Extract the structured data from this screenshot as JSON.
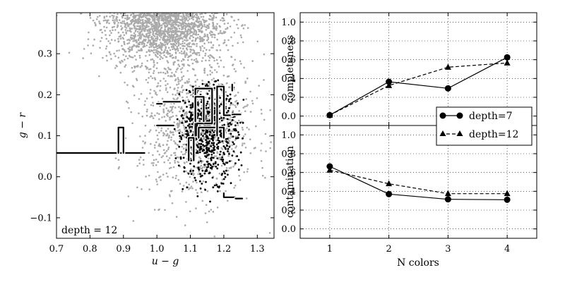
{
  "chart_data": [
    {
      "type": "scatter",
      "xlabel": "u − g",
      "ylabel": "g − r",
      "xlim": [
        0.7,
        1.35
      ],
      "ylim": [
        -0.15,
        0.4
      ],
      "xticks": [
        "0.7",
        "0.8",
        "0.9",
        "1.0",
        "1.1",
        "1.2",
        "1.3"
      ],
      "yticks": [
        "−0.1",
        "0.0",
        "0.1",
        "0.2",
        "0.3"
      ],
      "annotation": "depth = 12",
      "background_points": {
        "color": "#aaaaaa",
        "description_center": [
          1.02,
          0.38
        ]
      },
      "highlight_points": {
        "color": "#000000",
        "center": [
          1.15,
          0.11
        ]
      },
      "decision_boundary": {
        "color": "#000000",
        "segments": [
          {
            "x": [
              0.7,
              0.963
            ],
            "y": [
              0.058,
              0.058
            ]
          },
          {
            "x": [
              0.885,
              0.885,
              0.9,
              0.9
            ],
            "y": [
              0.058,
              0.12,
              0.12,
              0.058
            ]
          },
          {
            "x": [
              1.0,
              1.05
            ],
            "y": [
              0.125,
              0.125
            ]
          },
          {
            "x": [
              1.0,
              1.015
            ],
            "y": [
              0.178,
              0.178
            ]
          },
          {
            "x": [
              1.02,
              1.07
            ],
            "y": [
              0.183,
              0.183
            ]
          },
          {
            "x": [
              1.115,
              1.115,
              1.165,
              1.165,
              1.12,
              1.12
            ],
            "y": [
              0.1,
              0.215,
              0.215,
              0.13,
              0.13,
              0.1
            ]
          },
          {
            "x": [
              1.115,
              1.115,
              1.14,
              1.14
            ],
            "y": [
              0.135,
              0.195,
              0.195,
              0.135
            ]
          },
          {
            "x": [
              1.095,
              1.095,
              1.11,
              1.11
            ],
            "y": [
              0.04,
              0.095,
              0.095,
              0.04
            ]
          },
          {
            "x": [
              1.125,
              1.125,
              1.2,
              1.2
            ],
            "y": [
              0.095,
              0.12,
              0.12,
              0.095
            ]
          },
          {
            "x": [
              1.18,
              1.18,
              1.2,
              1.2,
              1.225
            ],
            "y": [
              0.1,
              0.22,
              0.22,
              0.15,
              0.15
            ]
          },
          {
            "x": [
              1.225,
              1.25
            ],
            "y": [
              0.152,
              0.152
            ]
          },
          {
            "x": [
              1.225,
              1.225
            ],
            "y": [
              0.225,
              0.21
            ]
          },
          {
            "x": [
              1.2,
              1.2,
              1.235
            ],
            "y": [
              -0.04,
              -0.05,
              -0.05
            ]
          },
          {
            "x": [
              1.235,
              1.255
            ],
            "y": [
              -0.053,
              -0.053
            ]
          }
        ]
      }
    },
    {
      "type": "line",
      "ylabel": "completeness",
      "x": [
        1,
        2,
        3,
        4
      ],
      "xlim": [
        0.5,
        4.5
      ],
      "ylim": [
        -0.1,
        1.1
      ],
      "yticks": [
        "0.0",
        "0.2",
        "0.4",
        "0.6",
        "0.8",
        "1.0"
      ],
      "grid": true,
      "series": [
        {
          "name": "depth=7",
          "values": [
            0.01,
            0.365,
            0.295,
            0.625
          ],
          "marker": "circle",
          "line": "solid"
        },
        {
          "name": "depth=12",
          "values": [
            0.01,
            0.325,
            0.52,
            0.565
          ],
          "marker": "triangle",
          "line": "dashed"
        }
      ]
    },
    {
      "type": "line",
      "ylabel": "contamination",
      "xlabel": "N colors",
      "x": [
        1,
        2,
        3,
        4
      ],
      "xticks": [
        "1",
        "2",
        "3",
        "4"
      ],
      "xlim": [
        0.5,
        4.5
      ],
      "ylim": [
        -0.1,
        1.1
      ],
      "yticks": [
        "0.0",
        "0.2",
        "0.4",
        "0.6",
        "0.8",
        "1.0"
      ],
      "grid": true,
      "legend": "right",
      "series": [
        {
          "name": "depth=7",
          "values": [
            0.665,
            0.37,
            0.315,
            0.31
          ],
          "marker": "circle",
          "line": "solid"
        },
        {
          "name": "depth=12",
          "values": [
            0.625,
            0.48,
            0.375,
            0.375
          ],
          "marker": "triangle",
          "line": "dashed"
        }
      ]
    }
  ]
}
